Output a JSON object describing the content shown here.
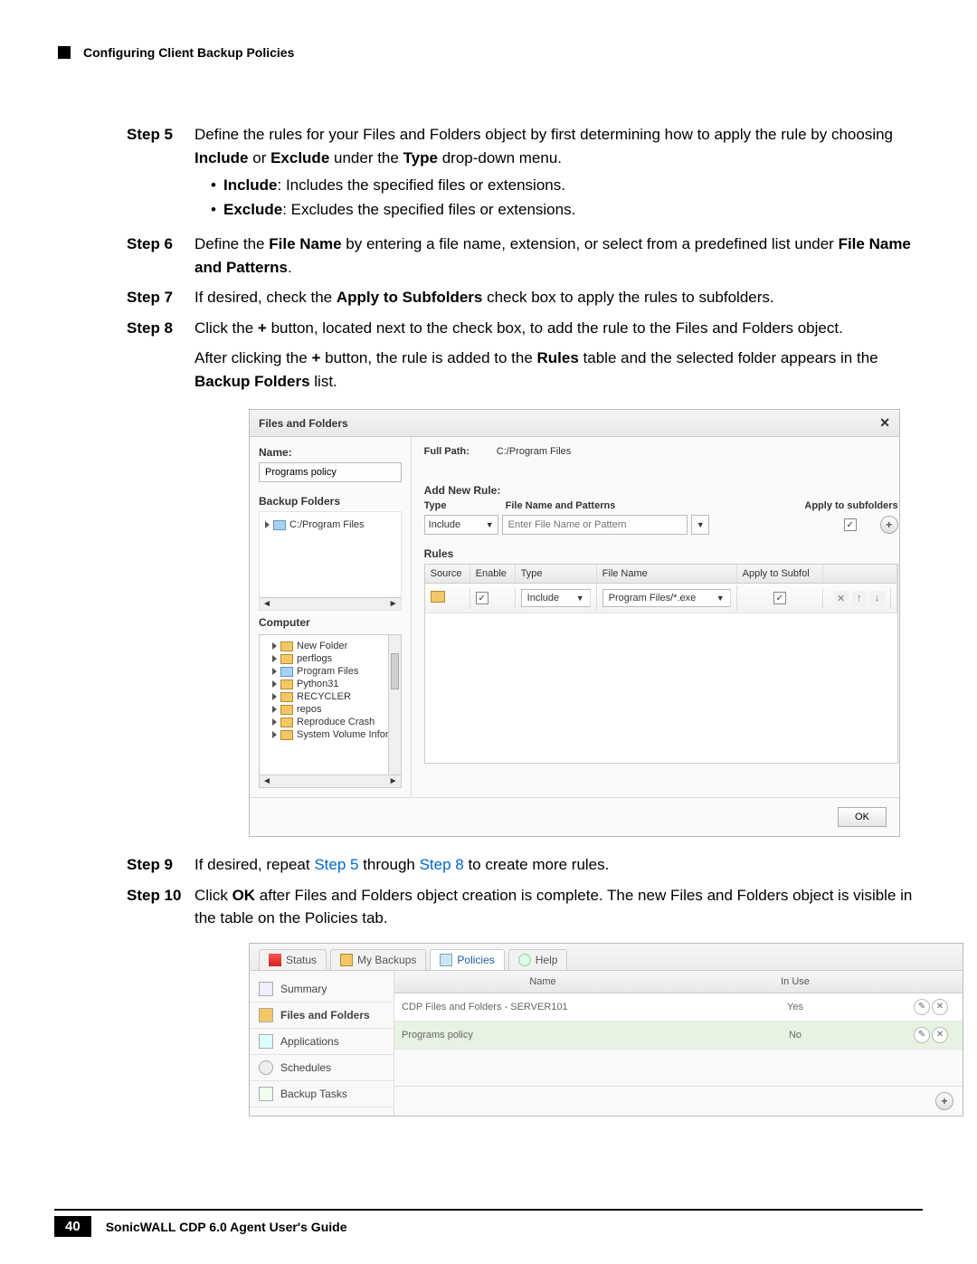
{
  "header": {
    "title": "Configuring Client Backup Policies"
  },
  "steps": {
    "s5": {
      "label": "Step 5",
      "text_a": "Define the rules for your Files and Folders object by first determining how to apply the rule by choosing ",
      "bold1": "Include",
      "mid1": " or ",
      "bold2": "Exclude",
      "mid2": " under the ",
      "bold3": "Type",
      "text_b": " drop-down menu.",
      "bullet1_b": "Include",
      "bullet1_t": ": Includes the specified files or extensions.",
      "bullet2_b": "Exclude",
      "bullet2_t": ": Excludes the specified files or extensions."
    },
    "s6": {
      "label": "Step 6",
      "a": "Define the ",
      "b1": "File Name",
      "b": " by entering a file name, extension, or select from a predefined list under ",
      "b2": "File Name and Patterns",
      "c": "."
    },
    "s7": {
      "label": "Step 7",
      "a": "If desired, check the ",
      "b1": "Apply to Subfolders",
      "b": " check box to apply the rules to subfolders."
    },
    "s8": {
      "label": "Step 8",
      "a": "Click the ",
      "b1": "+",
      "b": " button, located next to the check box, to add the rule to the Files and Folders object.",
      "cont_a": "After clicking the ",
      "cont_b1": "+",
      "cont_b": " button, the rule is added to the ",
      "cont_b2": "Rules",
      "cont_c": " table and the selected folder appears in the ",
      "cont_b3": "Backup Folders",
      "cont_d": " list."
    },
    "s9": {
      "label": "Step 9",
      "a": "If desired, repeat ",
      "l1": "Step 5",
      "b": " through ",
      "l2": "Step 8",
      "c": " to create more rules."
    },
    "s10": {
      "label": "Step 10",
      "a": "Click ",
      "b1": "OK",
      "b": " after Files and Folders object creation is complete. The new Files and Folders object is visible in the table on the Policies tab."
    }
  },
  "dialog": {
    "title": "Files and Folders",
    "close": "✕",
    "name_label": "Name:",
    "name_value": "Programs policy",
    "backup_folders_label": "Backup Folders",
    "backup_folder_item": "C:/Program Files",
    "computer_label": "Computer",
    "tree": [
      "New Folder",
      "perflogs",
      "Program Files",
      "Python31",
      "RECYCLER",
      "repos",
      "Reproduce Crash",
      "System Volume Inform"
    ],
    "fullpath_label": "Full Path:",
    "fullpath_value": "C:/Program Files",
    "add_rule_label": "Add New Rule:",
    "col_type": "Type",
    "col_pattern": "File Name and Patterns",
    "col_subfolders": "Apply to subfolders",
    "type_value": "Include",
    "pattern_placeholder": "Enter File Name or Pattern",
    "rules_label": "Rules",
    "th_source": "Source",
    "th_enable": "Enable",
    "th_type": "Type",
    "th_filename": "File Name",
    "th_sub": "Apply to Subfol",
    "row_type": "Include",
    "row_file": "Program Files/*.exe",
    "ok": "OK"
  },
  "policies": {
    "tabs": {
      "status": "Status",
      "mybackups": "My Backups",
      "policies": "Policies",
      "help": "Help"
    },
    "side": {
      "summary": "Summary",
      "files": "Files and Folders",
      "apps": "Applications",
      "schedules": "Schedules",
      "tasks": "Backup Tasks"
    },
    "th_name": "Name",
    "th_inuse": "In Use",
    "row1_name": "CDP Files and Folders - SERVER101",
    "row1_inuse": "Yes",
    "row2_name": "Programs policy",
    "row2_inuse": "No"
  },
  "footer": {
    "num": "40",
    "title": "SonicWALL CDP 6.0 Agent User's Guide"
  }
}
